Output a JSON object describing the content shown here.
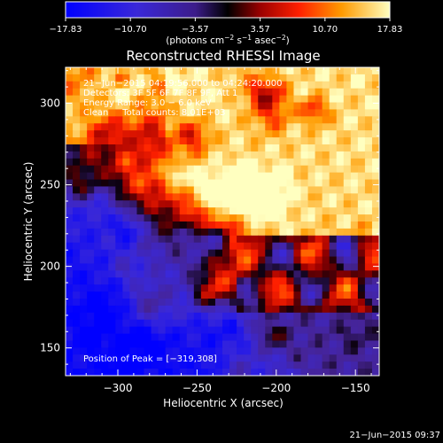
{
  "chart_data": {
    "type": "heatmap",
    "title": "Reconstructed RHESSI Image",
    "xlabel": "Heliocentric X (arcsec)",
    "ylabel": "Heliocentric Y (arcsec)",
    "xlim": [
      -333,
      -135
    ],
    "ylim": [
      133,
      322
    ],
    "x_ticks": [
      -300,
      -250,
      -200,
      -150
    ],
    "x_tick_labels": [
      "−300",
      "−250",
      "−200",
      "−150"
    ],
    "y_ticks": [
      150,
      200,
      250,
      300
    ],
    "y_tick_labels": [
      "150",
      "200",
      "250",
      "300"
    ],
    "colorbar": {
      "range": [
        -17.83,
        17.83
      ],
      "ticks": [
        -17.83,
        -10.7,
        -3.57,
        3.57,
        10.7,
        17.83
      ],
      "tick_labels": [
        "−17.83",
        "−10.70",
        "−3.57",
        "3.57",
        "10.70",
        "17.83"
      ],
      "unit_main": "(photons cm",
      "unit_exp1": "−2",
      "unit_mid1": " s",
      "unit_exp2": "−1",
      "unit_mid2": " asec",
      "unit_exp3": "−2",
      "unit_end": ")"
    },
    "annotations": [
      "21−Jun−2015 04:19:56.000 to 04:24:20.000",
      "Detectors: 3F 5F 6F 7F 8F 9F, Att 1",
      "Energy Range: 3.0 − 6.0 keV",
      "Clean     Total counts: 8.01E+03"
    ],
    "peak_label": "Position of Peak = [−319,308]",
    "peak": [
      -319,
      308
    ],
    "total_counts": 8010
  },
  "footer": {
    "timestamp": "21−Jun−2015 09:37"
  },
  "colors": {
    "background": "#000000",
    "colorbar_low": "#0000ff",
    "colorbar_mid": "#000000",
    "colorbar_high": "#ffff80"
  }
}
